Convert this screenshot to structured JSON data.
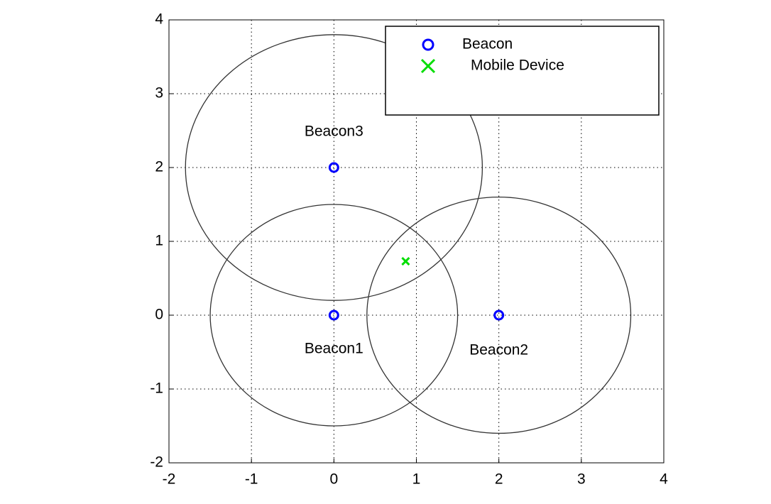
{
  "chart_data": {
    "type": "scatter",
    "xlim": [
      -2,
      4
    ],
    "ylim": [
      -2,
      4
    ],
    "xticks": [
      -2,
      -1,
      0,
      1,
      2,
      3,
      4
    ],
    "yticks": [
      -2,
      -1,
      0,
      1,
      2,
      3,
      4
    ],
    "grid": true,
    "legend": "upper right",
    "series": [
      {
        "name": "Beacon",
        "color": "#0000ff",
        "marker": "o",
        "x": [
          0,
          2,
          0
        ],
        "y": [
          0,
          0,
          2
        ],
        "labels": [
          "Beacon1",
          "Beacon2",
          "Beacon3"
        ],
        "radii": [
          1.5,
          1.6,
          1.8
        ],
        "radius_color": "#333333"
      },
      {
        "name": "Mobile Device",
        "color": "#00dd00",
        "marker": "x",
        "x": [
          0.87
        ],
        "y": [
          0.73
        ]
      }
    ]
  }
}
